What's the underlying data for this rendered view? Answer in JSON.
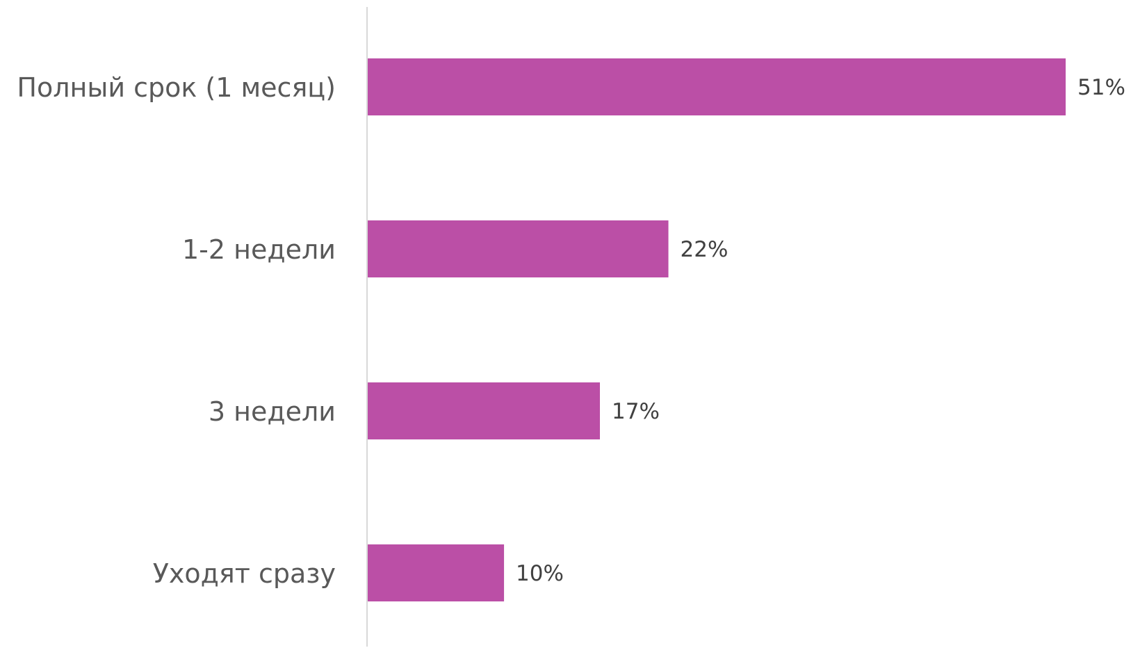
{
  "chart_data": {
    "type": "bar",
    "orientation": "horizontal",
    "title": "",
    "xlabel": "",
    "ylabel": "",
    "categories": [
      "Полный срок (1 месяц)",
      "1-2 недели",
      "3 недели",
      "Уходят сразу"
    ],
    "values": [
      51,
      22,
      17,
      10
    ],
    "value_labels": [
      "51%",
      "22%",
      "17%",
      "10%"
    ],
    "unit": "%",
    "xlim": [
      0,
      51
    ],
    "grid": false,
    "legend": "none",
    "colors": {
      "bar": "#BB4FA6",
      "axis": "#D9D9D9",
      "category_text": "#595959",
      "value_text": "#404040"
    }
  }
}
